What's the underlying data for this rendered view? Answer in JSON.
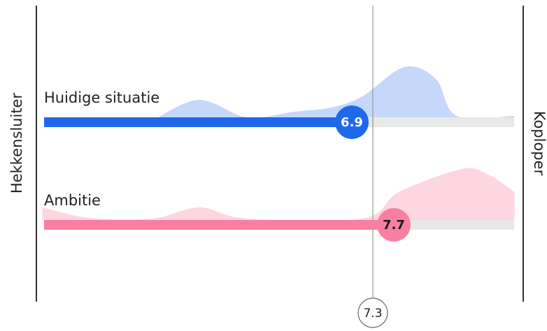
{
  "chart_data": {
    "type": "distribution-bar",
    "left_label": "Hekkensluiter",
    "right_label": "Koploper",
    "xlim": [
      1,
      10
    ],
    "reference": {
      "value": 7.3
    },
    "series": [
      {
        "name": "Huidige situatie",
        "color": "#2068ea",
        "area_color": "#c5d8fa",
        "label_color": "#ffffff",
        "value": 6.9,
        "distribution": {
          "x": [
            3.2,
            4,
            4.9,
            5.8,
            6.5,
            7.1,
            7.9,
            8.5,
            8.9,
            10
          ],
          "values": [
            0,
            25,
            0,
            8,
            14,
            30,
            72,
            55,
            2,
            2
          ]
        }
      },
      {
        "name": "Ambitie",
        "color": "#f87fa3",
        "area_color": "#fdd6e2",
        "label_color": "#1a1a1a",
        "value": 7.7,
        "distribution": {
          "x": [
            1,
            1.9,
            3.1,
            4,
            4.9,
            7.1,
            7.8,
            9,
            9.5,
            10
          ],
          "values": [
            18,
            3,
            2,
            18,
            2,
            2,
            40,
            73,
            65,
            40
          ]
        }
      }
    ]
  }
}
